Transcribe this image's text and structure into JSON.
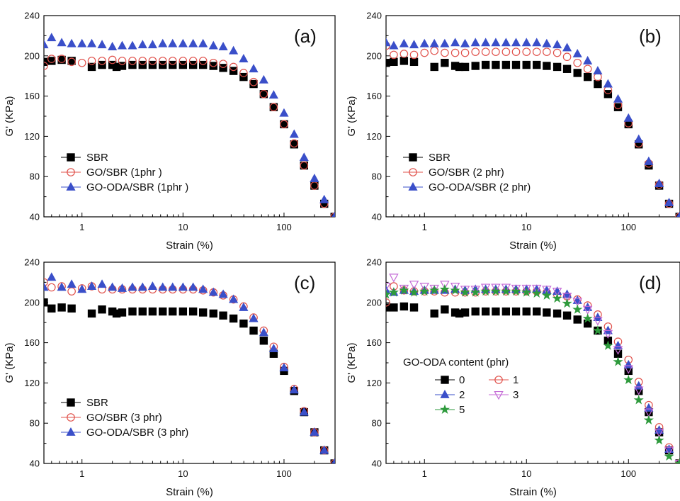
{
  "chart_data": [
    {
      "type": "scatter",
      "panel_label": "(a)",
      "xlabel": "Strain (%)",
      "ylabel": "G' (KPa)",
      "xscale": "log",
      "xlim": [
        0.42,
        320
      ],
      "ylim": [
        40,
        240
      ],
      "xticks": [
        {
          "v": 1,
          "label": "1"
        },
        {
          "v": 10,
          "label": "10"
        },
        {
          "v": 100,
          "label": "100"
        }
      ],
      "yticks": [
        40,
        80,
        120,
        160,
        200,
        240
      ],
      "legend_title": "",
      "legend_placement": "bottom-left",
      "series": [
        {
          "name": "SBR",
          "marker": "square",
          "color": "#000000",
          "x": [
            0.42,
            0.5,
            0.63,
            0.79,
            1.25,
            1.58,
            2.0,
            2.2,
            2.5,
            3.16,
            3.98,
            5.0,
            6.3,
            7.9,
            10,
            12.6,
            15.8,
            20,
            25,
            31.6,
            39.8,
            50,
            63,
            79,
            100,
            126,
            158,
            200,
            250,
            316
          ],
          "y": [
            194,
            195,
            196,
            195,
            189,
            191,
            191,
            189,
            190,
            191,
            191,
            191,
            191,
            191,
            191,
            191,
            191,
            190,
            188,
            185,
            179,
            172,
            162,
            149,
            132,
            112,
            91,
            71,
            53,
            40
          ]
        },
        {
          "name": "GO/SBR (1phr )",
          "marker": "circle",
          "color": "#e0504a",
          "x": [
            0.42,
            0.5,
            0.63,
            0.79,
            1.0,
            1.25,
            1.58,
            2.0,
            2.5,
            3.16,
            3.98,
            5.0,
            6.3,
            7.9,
            10,
            12.6,
            15.8,
            20,
            25,
            31.6,
            39.8,
            50,
            63,
            79,
            100,
            126,
            158,
            200,
            250,
            316
          ],
          "y": [
            190,
            197,
            197,
            194,
            193,
            195,
            195,
            196,
            195,
            195,
            195,
            195,
            195,
            195,
            195,
            195,
            195,
            193,
            192,
            189,
            183,
            174,
            162,
            149,
            132,
            113,
            91,
            71,
            53,
            40
          ]
        },
        {
          "name": "GO-ODA/SBR (1phr )",
          "marker": "triangle",
          "color": "#3a4fc9",
          "x": [
            0.42,
            0.5,
            0.63,
            0.79,
            1.0,
            1.25,
            1.58,
            2.0,
            2.5,
            3.16,
            3.98,
            5.0,
            6.3,
            7.9,
            10,
            12.6,
            15.8,
            20,
            25,
            31.6,
            39.8,
            50,
            63,
            79,
            100,
            126,
            158,
            200,
            250,
            316
          ],
          "y": [
            211,
            218,
            213,
            212,
            212,
            212,
            211,
            209,
            210,
            210,
            211,
            211,
            212,
            212,
            212,
            212,
            212,
            210,
            209,
            205,
            197,
            187,
            176,
            161,
            143,
            122,
            99,
            78,
            57,
            40
          ]
        }
      ]
    },
    {
      "type": "scatter",
      "panel_label": "(b)",
      "xlabel": "Strain (%)",
      "ylabel": "G' (KPa)",
      "xscale": "log",
      "xlim": [
        0.42,
        320
      ],
      "ylim": [
        40,
        240
      ],
      "xticks": [
        {
          "v": 1,
          "label": "1"
        },
        {
          "v": 10,
          "label": "10"
        },
        {
          "v": 100,
          "label": "100"
        }
      ],
      "yticks": [
        40,
        80,
        120,
        160,
        200,
        240
      ],
      "legend_title": "",
      "legend_placement": "bottom-left",
      "series": [
        {
          "name": "SBR",
          "marker": "square",
          "color": "#000000",
          "x": [
            0.42,
            0.5,
            0.63,
            0.79,
            1.25,
            1.58,
            2.0,
            2.2,
            2.5,
            3.16,
            3.98,
            5.0,
            6.3,
            7.9,
            10,
            12.6,
            15.8,
            20,
            25,
            31.6,
            39.8,
            50,
            63,
            79,
            100,
            126,
            158,
            200,
            250,
            316
          ],
          "y": [
            193,
            194,
            195,
            194,
            189,
            193,
            190,
            189,
            189,
            190,
            191,
            191,
            191,
            191,
            191,
            191,
            190,
            189,
            187,
            183,
            179,
            172,
            162,
            149,
            132,
            112,
            91,
            71,
            53,
            40
          ]
        },
        {
          "name": "GO/SBR (2 phr)",
          "marker": "circle",
          "color": "#e0504a",
          "x": [
            0.42,
            0.5,
            0.63,
            0.79,
            1.0,
            1.25,
            1.58,
            2.0,
            2.5,
            3.16,
            3.98,
            5.0,
            6.3,
            7.9,
            10,
            12.6,
            15.8,
            20,
            25,
            31.6,
            39.8,
            50,
            63,
            79,
            100,
            126,
            158,
            200,
            250,
            316
          ],
          "y": [
            210,
            201,
            202,
            201,
            203,
            205,
            203,
            203,
            203,
            204,
            204,
            204,
            204,
            204,
            204,
            204,
            204,
            203,
            199,
            193,
            187,
            179,
            166,
            151,
            133,
            113,
            93,
            72,
            53,
            40
          ]
        },
        {
          "name": "GO-ODA/SBR (2 phr)",
          "marker": "triangle",
          "color": "#3a4fc9",
          "x": [
            0.42,
            0.5,
            0.63,
            0.79,
            1.0,
            1.25,
            1.58,
            2.0,
            2.5,
            3.16,
            3.98,
            5.0,
            6.3,
            7.9,
            10,
            12.6,
            15.8,
            20,
            25,
            31.6,
            39.8,
            50,
            63,
            79,
            100,
            126,
            158,
            200,
            250,
            316
          ],
          "y": [
            213,
            210,
            212,
            211,
            212,
            212,
            212,
            213,
            212,
            213,
            213,
            213,
            213,
            213,
            213,
            213,
            212,
            211,
            208,
            202,
            195,
            185,
            172,
            157,
            138,
            117,
            95,
            73,
            54,
            40
          ]
        }
      ]
    },
    {
      "type": "scatter",
      "panel_label": "(c)",
      "xlabel": "Strain (%)",
      "ylabel": "G' (KPa)",
      "xscale": "log",
      "xlim": [
        0.42,
        320
      ],
      "ylim": [
        40,
        240
      ],
      "xticks": [
        {
          "v": 1,
          "label": "1"
        },
        {
          "v": 10,
          "label": "10"
        },
        {
          "v": 100,
          "label": "100"
        }
      ],
      "yticks": [
        40,
        80,
        120,
        160,
        200,
        240
      ],
      "legend_title": "",
      "legend_placement": "bottom-left",
      "series": [
        {
          "name": "SBR",
          "marker": "square",
          "color": "#000000",
          "x": [
            0.42,
            0.5,
            0.63,
            0.79,
            1.25,
            1.58,
            2.0,
            2.2,
            2.5,
            3.16,
            3.98,
            5.0,
            6.3,
            7.9,
            10,
            12.6,
            15.8,
            20,
            25,
            31.6,
            39.8,
            50,
            63,
            79,
            100,
            126,
            158,
            200,
            250,
            316
          ],
          "y": [
            200,
            194,
            195,
            194,
            189,
            193,
            191,
            189,
            190,
            191,
            191,
            191,
            191,
            191,
            191,
            191,
            190,
            189,
            187,
            184,
            179,
            172,
            162,
            149,
            132,
            112,
            91,
            71,
            53,
            40
          ]
        },
        {
          "name": "GO/SBR (3 phr)",
          "marker": "circle",
          "color": "#e0504a",
          "x": [
            0.42,
            0.5,
            0.63,
            0.79,
            1.0,
            1.25,
            1.58,
            2.0,
            2.5,
            3.16,
            3.98,
            5.0,
            6.3,
            7.9,
            10,
            12.6,
            15.8,
            20,
            25,
            31.6,
            39.8,
            50,
            63,
            79,
            100,
            126,
            158,
            200,
            250,
            316
          ],
          "y": [
            220,
            215,
            216,
            211,
            214,
            216,
            213,
            213,
            213,
            213,
            213,
            213,
            213,
            213,
            213,
            213,
            212,
            210,
            207,
            203,
            196,
            185,
            172,
            156,
            136,
            114,
            92,
            71,
            53,
            40
          ]
        },
        {
          "name": "GO-ODA/SBR (3 phr)",
          "marker": "triangle",
          "color": "#3a4fc9",
          "x": [
            0.42,
            0.5,
            0.63,
            0.79,
            1.0,
            1.25,
            1.58,
            2.0,
            2.5,
            3.16,
            3.98,
            5.0,
            6.3,
            7.9,
            10,
            12.6,
            15.8,
            20,
            25,
            31.6,
            39.8,
            50,
            63,
            79,
            100,
            126,
            158,
            200,
            250,
            316
          ],
          "y": [
            215,
            225,
            215,
            218,
            213,
            216,
            218,
            215,
            214,
            215,
            215,
            216,
            215,
            215,
            215,
            215,
            213,
            210,
            208,
            203,
            195,
            184,
            170,
            154,
            135,
            113,
            91,
            71,
            53,
            40
          ]
        }
      ]
    },
    {
      "type": "scatter",
      "panel_label": "(d)",
      "xlabel": "Strain (%)",
      "ylabel": "G' (KPa)",
      "xscale": "log",
      "xlim": [
        0.42,
        320
      ],
      "ylim": [
        40,
        240
      ],
      "xticks": [
        {
          "v": 1,
          "label": "1"
        },
        {
          "v": 10,
          "label": "10"
        },
        {
          "v": 100,
          "label": "100"
        }
      ],
      "yticks": [
        40,
        80,
        120,
        160,
        200,
        240
      ],
      "legend_title": "GO-ODA content (phr)",
      "legend_placement": "bottom-left",
      "series": [
        {
          "name": "0",
          "marker": "square",
          "color": "#000000",
          "x": [
            0.42,
            0.5,
            0.63,
            0.79,
            1.25,
            1.58,
            2.0,
            2.2,
            2.5,
            3.16,
            3.98,
            5.0,
            6.3,
            7.9,
            10,
            12.6,
            15.8,
            20,
            25,
            31.6,
            39.8,
            50,
            63,
            79,
            100,
            126,
            158,
            200,
            250,
            316
          ],
          "y": [
            195,
            195,
            196,
            195,
            189,
            193,
            190,
            189,
            190,
            191,
            191,
            191,
            191,
            191,
            191,
            191,
            190,
            189,
            187,
            183,
            179,
            172,
            162,
            149,
            132,
            112,
            91,
            71,
            53,
            40
          ]
        },
        {
          "name": "1",
          "marker": "circle",
          "color": "#e0504a",
          "x": [
            0.42,
            0.5,
            0.63,
            0.79,
            1.0,
            1.25,
            1.58,
            2.0,
            2.5,
            3.16,
            3.98,
            5.0,
            6.3,
            7.9,
            10,
            12.6,
            15.8,
            20,
            25,
            31.6,
            39.8,
            50,
            63,
            79,
            100,
            126,
            158,
            200,
            250,
            316
          ],
          "y": [
            200,
            216,
            212,
            211,
            211,
            211,
            210,
            210,
            210,
            210,
            211,
            211,
            211,
            211,
            211,
            211,
            210,
            208,
            206,
            203,
            197,
            188,
            176,
            161,
            143,
            121,
            98,
            76,
            56,
            40
          ]
        },
        {
          "name": "2",
          "marker": "triangle",
          "color": "#3a4fc9",
          "x": [
            0.42,
            0.5,
            0.63,
            0.79,
            1.0,
            1.25,
            1.58,
            2.0,
            2.5,
            3.16,
            3.98,
            5.0,
            6.3,
            7.9,
            10,
            12.6,
            15.8,
            20,
            25,
            31.6,
            39.8,
            50,
            63,
            79,
            100,
            126,
            158,
            200,
            250,
            316
          ],
          "y": [
            212,
            210,
            212,
            211,
            212,
            212,
            212,
            213,
            212,
            213,
            213,
            213,
            213,
            213,
            213,
            213,
            212,
            211,
            208,
            202,
            195,
            185,
            172,
            157,
            138,
            117,
            95,
            73,
            54,
            40
          ]
        },
        {
          "name": "3",
          "marker": "triangle-down",
          "color": "#c46ad6",
          "x": [
            0.42,
            0.5,
            0.63,
            0.79,
            1.0,
            1.25,
            1.58,
            2.0,
            2.5,
            3.16,
            3.98,
            5.0,
            6.3,
            7.9,
            10,
            12.6,
            15.8,
            20,
            25,
            31.6,
            39.8,
            50,
            63,
            79,
            100,
            126,
            158,
            200,
            250,
            316
          ],
          "y": [
            216,
            225,
            214,
            218,
            216,
            214,
            218,
            216,
            213,
            213,
            215,
            215,
            215,
            214,
            214,
            214,
            213,
            211,
            206,
            201,
            193,
            182,
            169,
            153,
            134,
            113,
            91,
            71,
            53,
            40
          ]
        },
        {
          "name": "5",
          "marker": "star",
          "color": "#2e9a3c",
          "x": [
            0.42,
            0.5,
            0.63,
            0.79,
            1.0,
            1.25,
            1.58,
            2.0,
            2.5,
            3.16,
            3.98,
            5.0,
            6.3,
            7.9,
            10,
            12.6,
            15.8,
            20,
            25,
            31.6,
            39.8,
            50,
            63,
            79,
            100,
            126,
            158,
            200,
            250,
            316
          ],
          "y": [
            208,
            210,
            212,
            210,
            211,
            212,
            213,
            212,
            210,
            210,
            211,
            211,
            211,
            211,
            210,
            209,
            207,
            204,
            199,
            193,
            184,
            172,
            157,
            141,
            123,
            103,
            83,
            63,
            47,
            40
          ]
        }
      ]
    }
  ]
}
